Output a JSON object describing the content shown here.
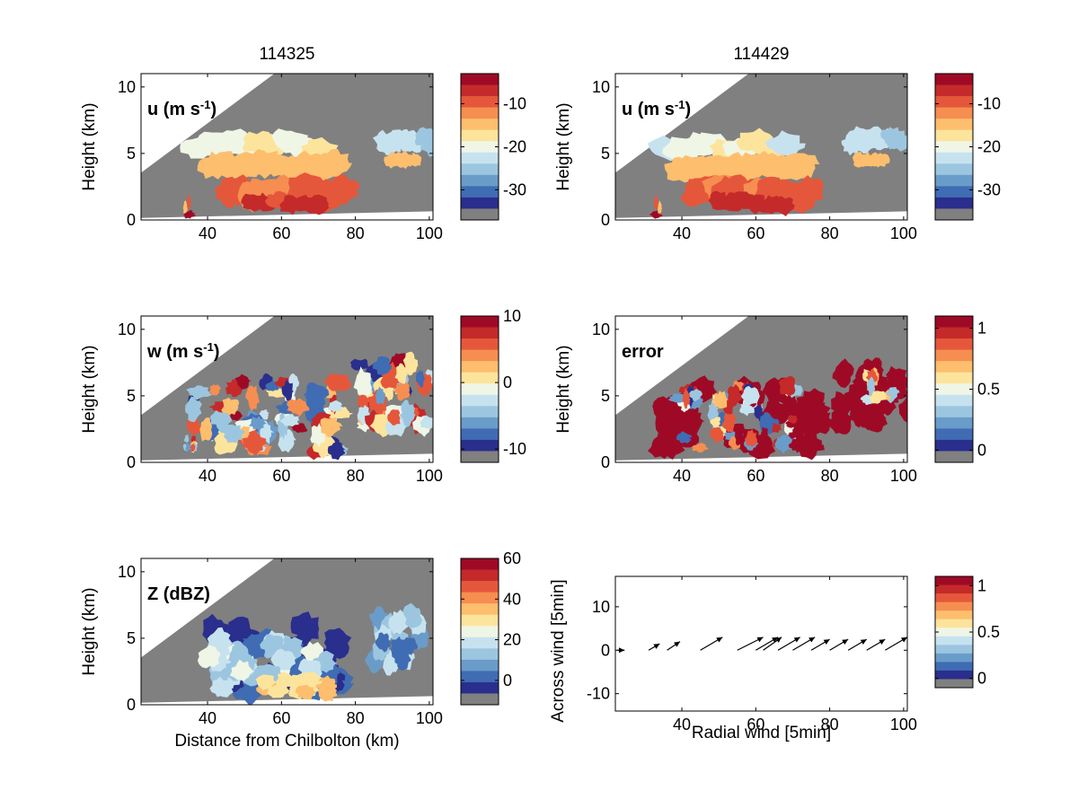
{
  "figure": {
    "column_titles": [
      "114325",
      "114429"
    ],
    "panels": [
      {
        "id": "u1",
        "label_main": "u (m s",
        "label_sup": "-1",
        "label_tail": ")",
        "ylabel": "Height (km)",
        "xlabel": "",
        "colorbar_ticks": [
          "-10",
          "-20",
          "-30"
        ],
        "field": "u"
      },
      {
        "id": "u2",
        "label_main": "u (m s",
        "label_sup": "-1",
        "label_tail": ")",
        "ylabel": "Height (km)",
        "xlabel": "",
        "colorbar_ticks": [
          "-10",
          "-20",
          "-30"
        ],
        "field": "u"
      },
      {
        "id": "w1",
        "label_main": "w (m s",
        "label_sup": "-1",
        "label_tail": ")",
        "ylabel": "Height (km)",
        "xlabel": "",
        "colorbar_ticks": [
          "10",
          "0",
          "-10"
        ],
        "field": "w"
      },
      {
        "id": "err",
        "label_main": "error",
        "label_sup": "",
        "label_tail": "",
        "ylabel": "Height (km)",
        "xlabel": "",
        "colorbar_ticks": [
          "1",
          "0.5",
          "0"
        ],
        "field": "error"
      },
      {
        "id": "z1",
        "label_main": "Z (dBZ)",
        "label_sup": "",
        "label_tail": "",
        "ylabel": "Height (km)",
        "xlabel": "Distance from Chilbolton (km)",
        "colorbar_ticks": [
          "60",
          "40",
          "20",
          "0"
        ],
        "field": "Z"
      },
      {
        "id": "vec",
        "label_main": "",
        "label_sup": "",
        "label_tail": "",
        "ylabel": "Across wind [5min]",
        "xlabel": "Radial wind [5min]",
        "colorbar_ticks": [
          "1",
          "0.5",
          "0"
        ],
        "field": "vectors"
      }
    ]
  },
  "chart_data": [
    {
      "type": "heatmap",
      "id": "u1",
      "title": "114325",
      "field": "u (m s-1)",
      "xlim": [
        22,
        101
      ],
      "ylim": [
        0,
        11
      ],
      "xticks": [
        40,
        60,
        80,
        100
      ],
      "yticks": [
        0,
        5,
        10
      ],
      "colorbar": {
        "range": [
          -37,
          -3
        ],
        "ticks": [
          -10,
          -20,
          -30
        ]
      },
      "regions": [
        {
          "x": [
            37,
            80
          ],
          "y": [
            0.3,
            4.5
          ],
          "value": -13
        },
        {
          "x": [
            45,
            75
          ],
          "y": [
            0.4,
            3
          ],
          "value": -8
        },
        {
          "x": [
            33,
            72
          ],
          "y": [
            4.2,
            6.2
          ],
          "value": -21
        },
        {
          "x": [
            87,
            101
          ],
          "y": [
            4.5,
            7
          ],
          "value": -22
        }
      ]
    },
    {
      "type": "heatmap",
      "id": "u2",
      "title": "114429",
      "field": "u (m s-1)",
      "xlim": [
        22,
        101
      ],
      "ylim": [
        0,
        11
      ],
      "xticks": [
        40,
        60,
        80,
        100
      ],
      "yticks": [
        0,
        5,
        10
      ],
      "colorbar": {
        "range": [
          -37,
          -3
        ],
        "ticks": [
          -10,
          -20,
          -30
        ]
      },
      "regions": [
        {
          "x": [
            37,
            76
          ],
          "y": [
            0.3,
            4.5
          ],
          "value": -13
        },
        {
          "x": [
            43,
            72
          ],
          "y": [
            0.4,
            3
          ],
          "value": -8
        },
        {
          "x": [
            35,
            70
          ],
          "y": [
            4.2,
            6.2
          ],
          "value": -21
        },
        {
          "x": [
            85,
            101
          ],
          "y": [
            4.3,
            7
          ],
          "value": -22
        }
      ]
    },
    {
      "type": "heatmap",
      "id": "w1",
      "title": "",
      "field": "w (m s-1)",
      "xlim": [
        22,
        101
      ],
      "ylim": [
        0,
        11
      ],
      "xticks": [
        40,
        60,
        80,
        100
      ],
      "yticks": [
        0,
        5,
        10
      ],
      "colorbar": {
        "range": [
          -12,
          10
        ],
        "ticks": [
          10,
          0,
          -10
        ]
      }
    },
    {
      "type": "heatmap",
      "id": "err",
      "title": "",
      "field": "error",
      "xlim": [
        22,
        101
      ],
      "ylim": [
        0,
        11
      ],
      "xticks": [
        40,
        60,
        80,
        100
      ],
      "yticks": [
        0,
        5,
        10
      ],
      "colorbar": {
        "range": [
          -0.1,
          1.1
        ],
        "ticks": [
          1,
          0.5,
          0
        ]
      }
    },
    {
      "type": "heatmap",
      "id": "z1",
      "title": "",
      "field": "Z (dBZ)",
      "xlim": [
        22,
        101
      ],
      "ylim": [
        0,
        11
      ],
      "xticks": [
        40,
        60,
        80,
        100
      ],
      "yticks": [
        0,
        5,
        10
      ],
      "xlabel": "Distance from Chilbolton (km)",
      "colorbar": {
        "range": [
          -12,
          60
        ],
        "ticks": [
          60,
          40,
          20,
          0
        ]
      }
    },
    {
      "type": "scatter",
      "id": "vec",
      "title": "",
      "field": "wind vectors",
      "xlabel": "Radial wind [5min]",
      "ylabel": "Across wind [5min]",
      "xlim": [
        22,
        101
      ],
      "ylim": [
        -14,
        17
      ],
      "xticks": [
        40,
        60,
        80,
        100
      ],
      "yticks": [
        -10,
        0,
        10
      ],
      "vectors": [
        {
          "x": 22.5,
          "y": 0,
          "u": 2,
          "v": 0
        },
        {
          "x": 31,
          "y": 0,
          "u": 3,
          "v": 1.5
        },
        {
          "x": 36,
          "y": 0,
          "u": 3.5,
          "v": 2
        },
        {
          "x": 45,
          "y": 0,
          "u": 6,
          "v": 3
        },
        {
          "x": 55,
          "y": 0,
          "u": 7,
          "v": 3
        },
        {
          "x": 60,
          "y": 0,
          "u": 6,
          "v": 3
        },
        {
          "x": 62,
          "y": 0,
          "u": 5,
          "v": 3
        },
        {
          "x": 66,
          "y": 0,
          "u": 6,
          "v": 3
        },
        {
          "x": 70,
          "y": 0,
          "u": 6,
          "v": 3
        },
        {
          "x": 75,
          "y": 0,
          "u": 5,
          "v": 2.5
        },
        {
          "x": 80,
          "y": 0,
          "u": 5,
          "v": 2.5
        },
        {
          "x": 85,
          "y": 0,
          "u": 5,
          "v": 2.5
        },
        {
          "x": 90,
          "y": 0,
          "u": 5,
          "v": 2.5
        },
        {
          "x": 95,
          "y": 0,
          "u": 6,
          "v": 3
        }
      ],
      "colorbar": {
        "range": [
          -0.1,
          1.1
        ],
        "ticks": [
          1,
          0.5,
          0
        ]
      }
    }
  ]
}
